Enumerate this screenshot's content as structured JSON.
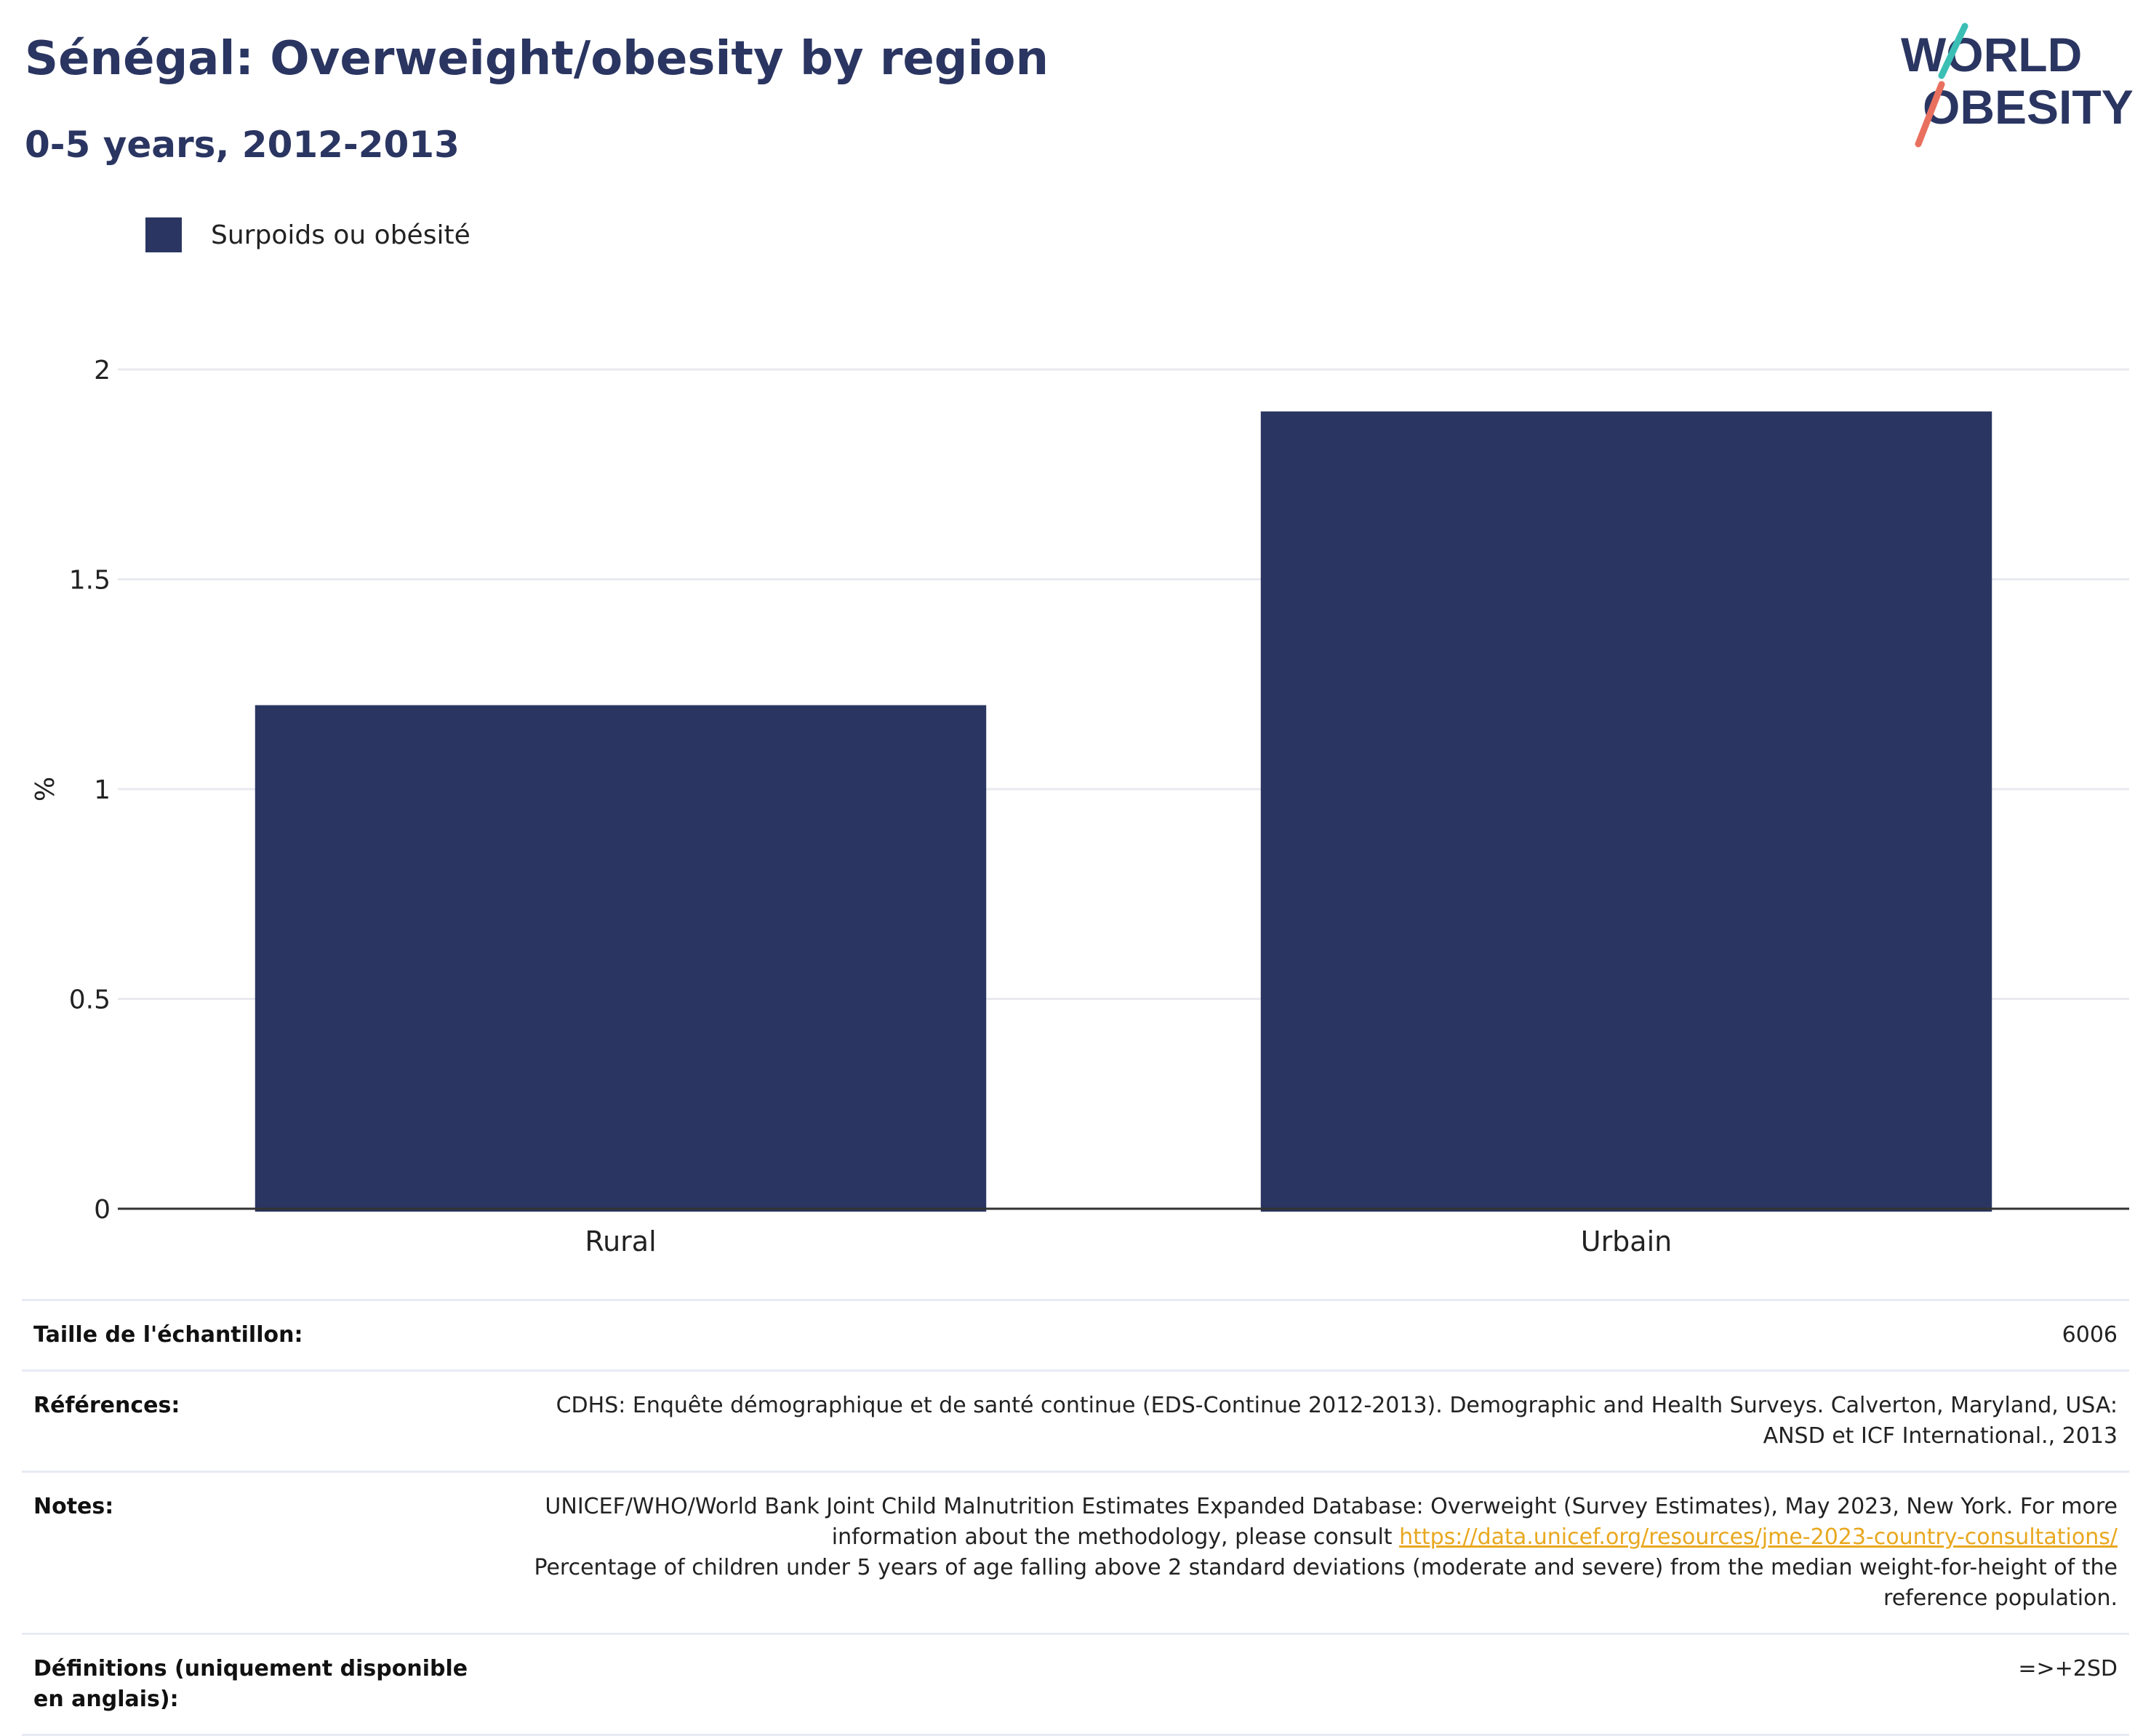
{
  "header": {
    "title": "Sénégal: Overweight/obesity by region",
    "subtitle": "0-5 years, 2012-2013",
    "logo_line1": "WORLD",
    "logo_line2": "OBESITY"
  },
  "legend": {
    "label": "Surpoids ou obésité",
    "color": "#2a3661"
  },
  "chart_data": {
    "type": "bar",
    "title": "Sénégal: Overweight/obesity by region",
    "subtitle": "0-5 years, 2012-2013",
    "categories": [
      "Rural",
      "Urbain"
    ],
    "series": [
      {
        "name": "Surpoids ou obésité",
        "values": [
          1.2,
          1.9
        ]
      }
    ],
    "ylabel": "%",
    "xlabel": "",
    "ylim": [
      0,
      2
    ],
    "yticks": [
      0,
      0.5,
      1,
      1.5,
      2
    ],
    "ytick_labels": [
      "0",
      "0.5",
      "1",
      "1.5",
      "2"
    ],
    "grid": true,
    "legend_position": "top-left",
    "colors": {
      "bar": "#2a3661",
      "grid": "#e8eaf0",
      "axis": "#333333"
    }
  },
  "info": {
    "sample_size_label": "Taille de l'échantillon:",
    "sample_size_value": "6006",
    "references_label": "Références:",
    "references_value": "CDHS: Enquête démographique et de santé continue (EDS-Continue 2012-2013). Demographic and Health Surveys. Calverton, Maryland, USA: ANSD et ICF International., 2013",
    "notes_label": "Notes:",
    "notes_text_before_link": "UNICEF/WHO/World Bank Joint Child Malnutrition Estimates Expanded Database: Overweight (Survey Estimates), May 2023, New York. For more information about the methodology, please consult",
    "notes_link": "https://data.unicef.org/resources/jme-2023-country-consultations/",
    "notes_text_after_link": "Percentage of children under 5 years of age falling above 2 standard deviations (moderate and severe) from the median weight-for-height of the reference population.",
    "definitions_label": "Définitions (uniquement disponible en anglais):",
    "definitions_value": "=>+2SD"
  }
}
